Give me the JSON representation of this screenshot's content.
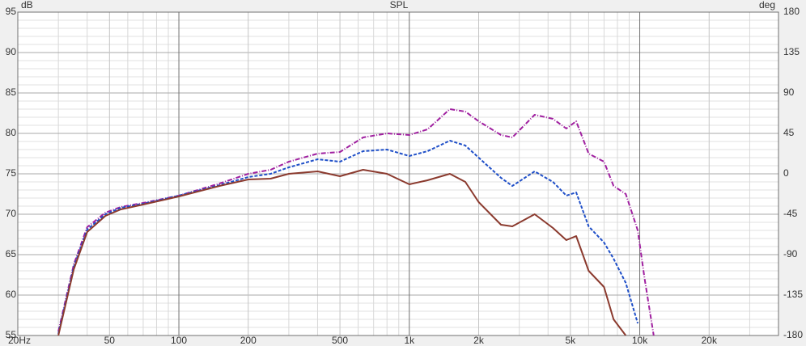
{
  "chart_data": {
    "type": "line",
    "title": "SPL",
    "y_unit": "dB",
    "y2_unit": "deg",
    "log_x": true,
    "grid": true,
    "xlim": [
      20,
      40000
    ],
    "ylim": [
      55,
      95
    ],
    "y2lim": [
      -180,
      180
    ],
    "xticks": [
      {
        "value": 20,
        "label": "20Hz"
      },
      50,
      100,
      200,
      500,
      {
        "value": 1000,
        "label": "1k"
      },
      {
        "value": 2000,
        "label": "2k"
      },
      {
        "value": 5000,
        "label": "5k"
      },
      {
        "value": 10000,
        "label": "10k"
      },
      {
        "value": 20000,
        "label": "20k"
      }
    ],
    "xminorticks": [
      30,
      40,
      60,
      70,
      80,
      90,
      300,
      400,
      600,
      700,
      800,
      900,
      3000,
      4000,
      6000,
      7000,
      8000,
      9000,
      30000
    ],
    "yticks": [
      55,
      60,
      65,
      70,
      75,
      80,
      85,
      90,
      95
    ],
    "yminorticks": [
      56,
      57,
      58,
      59,
      61,
      62,
      63,
      64,
      66,
      67,
      68,
      69,
      71,
      72,
      73,
      74,
      76,
      77,
      78,
      79,
      81,
      82,
      83,
      84,
      86,
      87,
      88,
      89,
      91,
      92,
      93,
      94
    ],
    "y2ticks": [
      -180,
      -135,
      -90,
      -45,
      0,
      45,
      90,
      135,
      180
    ],
    "x": [
      30,
      35,
      40,
      48,
      56,
      70,
      100,
      150,
      200,
      250,
      300,
      400,
      500,
      630,
      800,
      1000,
      1200,
      1500,
      1750,
      2000,
      2500,
      2800,
      3500,
      4200,
      4800,
      5300,
      6000,
      7000,
      7700,
      8700,
      9800,
      10500,
      11500
    ],
    "series": [
      {
        "color": "#a020a0",
        "dash": "6 2 1 2",
        "values": [
          55.5,
          63.8,
          68.4,
          70.2,
          70.9,
          71.4,
          72.3,
          73.8,
          75,
          75.5,
          76.5,
          77.5,
          77.7,
          79.5,
          80,
          79.8,
          80.5,
          83,
          82.7,
          81.5,
          79.8,
          79.5,
          82.3,
          81.8,
          80.6,
          81.5,
          77.5,
          76.5,
          73.5,
          72.5,
          68,
          62,
          55
        ]
      },
      {
        "color": "#1f4fc8",
        "dash": "4 2",
        "values": [
          55.2,
          63.5,
          68.1,
          70,
          70.8,
          71.3,
          72.3,
          73.6,
          74.6,
          75,
          75.8,
          76.8,
          76.5,
          77.8,
          78,
          77.2,
          77.8,
          79.1,
          78.5,
          77,
          74.5,
          73.5,
          75.3,
          74,
          72.3,
          72.7,
          68.5,
          66.5,
          64.5,
          61.5,
          56.5,
          null,
          null
        ]
      },
      {
        "color": "#8b3a2e",
        "dash": "",
        "values": [
          55,
          63.2,
          67.8,
          69.8,
          70.6,
          71.2,
          72.2,
          73.5,
          74.3,
          74.4,
          75,
          75.3,
          74.7,
          75.5,
          75,
          73.7,
          74.2,
          75,
          74,
          71.5,
          68.7,
          68.5,
          70,
          68.3,
          66.8,
          67.3,
          63,
          61,
          57,
          55,
          null,
          null,
          null
        ]
      }
    ]
  }
}
